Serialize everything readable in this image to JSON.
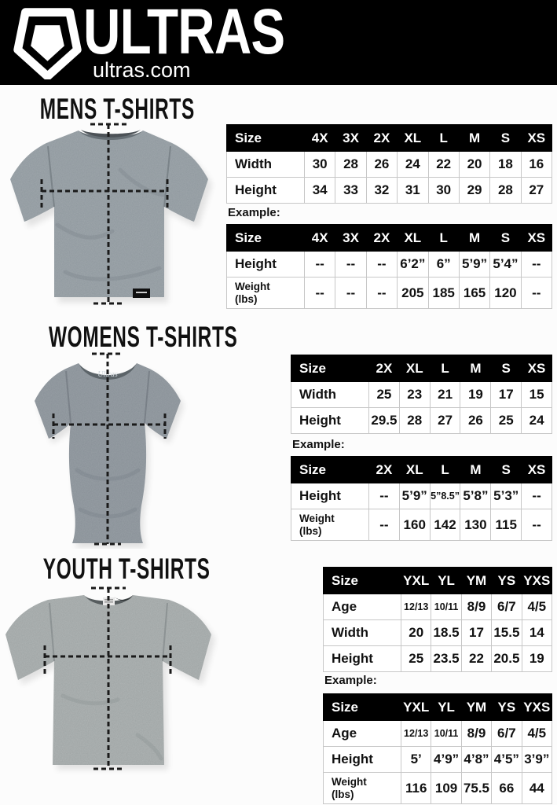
{
  "header": {
    "brand": "ULTRAS",
    "site": "ultras.com"
  },
  "sections": [
    {
      "title": "MENS T-SHIRTS",
      "example_label": "Example:",
      "size_table": {
        "columns": [
          "Size",
          "4X",
          "3X",
          "2X",
          "XL",
          "L",
          "M",
          "S",
          "XS"
        ],
        "rows": [
          {
            "label": "Width",
            "values": [
              "30",
              "28",
              "26",
              "24",
              "22",
              "20",
              "18",
              "16"
            ]
          },
          {
            "label": "Height",
            "values": [
              "34",
              "33",
              "32",
              "31",
              "30",
              "29",
              "28",
              "27"
            ]
          }
        ]
      },
      "example_table": {
        "columns": [
          "Size",
          "4X",
          "3X",
          "2X",
          "XL",
          "L",
          "M",
          "S",
          "XS"
        ],
        "rows": [
          {
            "label": "Height",
            "values": [
              "--",
              "--",
              "--",
              "6’2”",
              "6”",
              "5’9”",
              "5’4”",
              "--"
            ]
          },
          {
            "label": "Weight\n(lbs)",
            "values": [
              "--",
              "--",
              "--",
              "205",
              "185",
              "165",
              "120",
              "--"
            ]
          }
        ]
      }
    },
    {
      "title": "WOMENS T-SHIRTS",
      "example_label": "Example:",
      "size_table": {
        "columns": [
          "Size",
          "2X",
          "XL",
          "L",
          "M",
          "S",
          "XS"
        ],
        "rows": [
          {
            "label": "Width",
            "values": [
              "25",
              "23",
              "21",
              "19",
              "17",
              "15"
            ]
          },
          {
            "label": "Height",
            "values": [
              "29.5",
              "28",
              "27",
              "26",
              "25",
              "24"
            ]
          }
        ]
      },
      "example_table": {
        "columns": [
          "Size",
          "2X",
          "XL",
          "L",
          "M",
          "S",
          "XS"
        ],
        "rows": [
          {
            "label": "Height",
            "values": [
              "--",
              "5’9”",
              "5”8.5”",
              "5’8”",
              "5’3”",
              "--"
            ]
          },
          {
            "label": "Weight\n(lbs)",
            "values": [
              "--",
              "160",
              "142",
              "130",
              "115",
              "--"
            ]
          }
        ]
      }
    },
    {
      "title": "YOUTH T-SHIRTS",
      "example_label": "Example:",
      "size_table": {
        "columns": [
          "Size",
          "YXL",
          "YL",
          "YM",
          "YS",
          "YXS"
        ],
        "rows": [
          {
            "label": "Age",
            "values": [
              "12/13",
              "10/11",
              "8/9",
              "6/7",
              "4/5"
            ]
          },
          {
            "label": "Width",
            "values": [
              "20",
              "18.5",
              "17",
              "15.5",
              "14"
            ]
          },
          {
            "label": "Height",
            "values": [
              "25",
              "23.5",
              "22",
              "20.5",
              "19"
            ]
          }
        ]
      },
      "example_table": {
        "columns": [
          "Size",
          "YXL",
          "YL",
          "YM",
          "YS",
          "YXS"
        ],
        "rows": [
          {
            "label": "Age",
            "values": [
              "12/13",
              "10/11",
              "8/9",
              "6/7",
              "4/5"
            ]
          },
          {
            "label": "Height",
            "values": [
              "5’",
              "4’9”",
              "4’8”",
              "4’5”",
              "3’9”"
            ]
          },
          {
            "label": "Weight\n(lbs)",
            "values": [
              "116",
              "109",
              "75.5",
              "66",
              "44"
            ]
          }
        ]
      }
    }
  ],
  "colors": {
    "header_bg": "#000000",
    "table_header_bg": "#000000",
    "mens_shirt": "#8e979d",
    "womens_shirt": "#878f96",
    "youth_shirt": "#9da3a3",
    "dash_line": "#1a1a1a"
  }
}
